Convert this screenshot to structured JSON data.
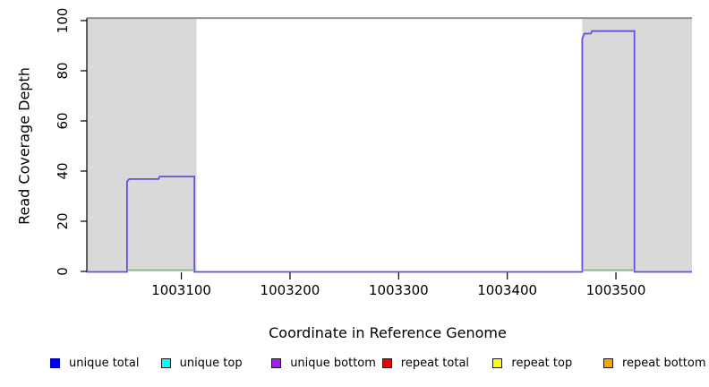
{
  "axes": {
    "ylabel": "Read Coverage Depth",
    "xlabel": "Coordinate in Reference Genome",
    "yticks": [
      0,
      20,
      40,
      60,
      80,
      100
    ],
    "xticks": [
      1003100,
      1003200,
      1003300,
      1003400,
      1003500
    ]
  },
  "legend": {
    "items": [
      {
        "label": "unique total",
        "color": "#0000ee",
        "border": "#0000b0"
      },
      {
        "label": "unique top",
        "color": "#00ffff",
        "border": "#1a1a1a"
      },
      {
        "label": "unique bottom",
        "color": "#a020f0",
        "border": "#1a1a1a"
      },
      {
        "label": "repeat total",
        "color": "#ee0000",
        "border": "#1a1a1a"
      },
      {
        "label": "repeat top",
        "color": "#ffff00",
        "border": "#1a1a1a"
      },
      {
        "label": "repeat bottom",
        "color": "#f5a400",
        "border": "#1a1a1a"
      }
    ]
  },
  "chart_data": {
    "type": "line",
    "title": "",
    "xlabel": "Coordinate in Reference Genome",
    "ylabel": "Read Coverage Depth",
    "xlim": [
      1003013,
      1003570
    ],
    "ylim": [
      0,
      100
    ],
    "grid": false,
    "legend_position": "bottom",
    "background_color": "#ffffff",
    "shaded_region_color": "#d9d9d9",
    "shaded_regions": [
      {
        "x1": 1003013,
        "x2": 1003114,
        "ymax": 101
      },
      {
        "x1": 1003469,
        "x2": 1003570,
        "ymax": 101
      }
    ],
    "cap_line": {
      "y": 101,
      "color": "#8a8a8a"
    },
    "series": [
      {
        "name": "unique bottom coverage",
        "color": "#6a4de0",
        "points": [
          [
            1003013,
            0
          ],
          [
            1003050,
            0
          ],
          [
            1003050,
            36
          ],
          [
            1003052,
            37
          ],
          [
            1003079,
            37
          ],
          [
            1003080,
            38
          ],
          [
            1003112,
            38
          ],
          [
            1003112,
            0
          ],
          [
            1003469,
            0
          ],
          [
            1003469,
            93
          ],
          [
            1003470,
            94
          ],
          [
            1003471,
            95
          ],
          [
            1003477,
            95
          ],
          [
            1003478,
            96
          ],
          [
            1003517,
            96
          ],
          [
            1003517,
            0
          ],
          [
            1003570,
            0
          ]
        ]
      },
      {
        "name": "covered-interval zero baseline (green)",
        "color": "#7cbf7c",
        "zero_segments": [
          [
            1003050,
            1003112
          ],
          [
            1003469,
            1003517
          ]
        ]
      }
    ]
  }
}
